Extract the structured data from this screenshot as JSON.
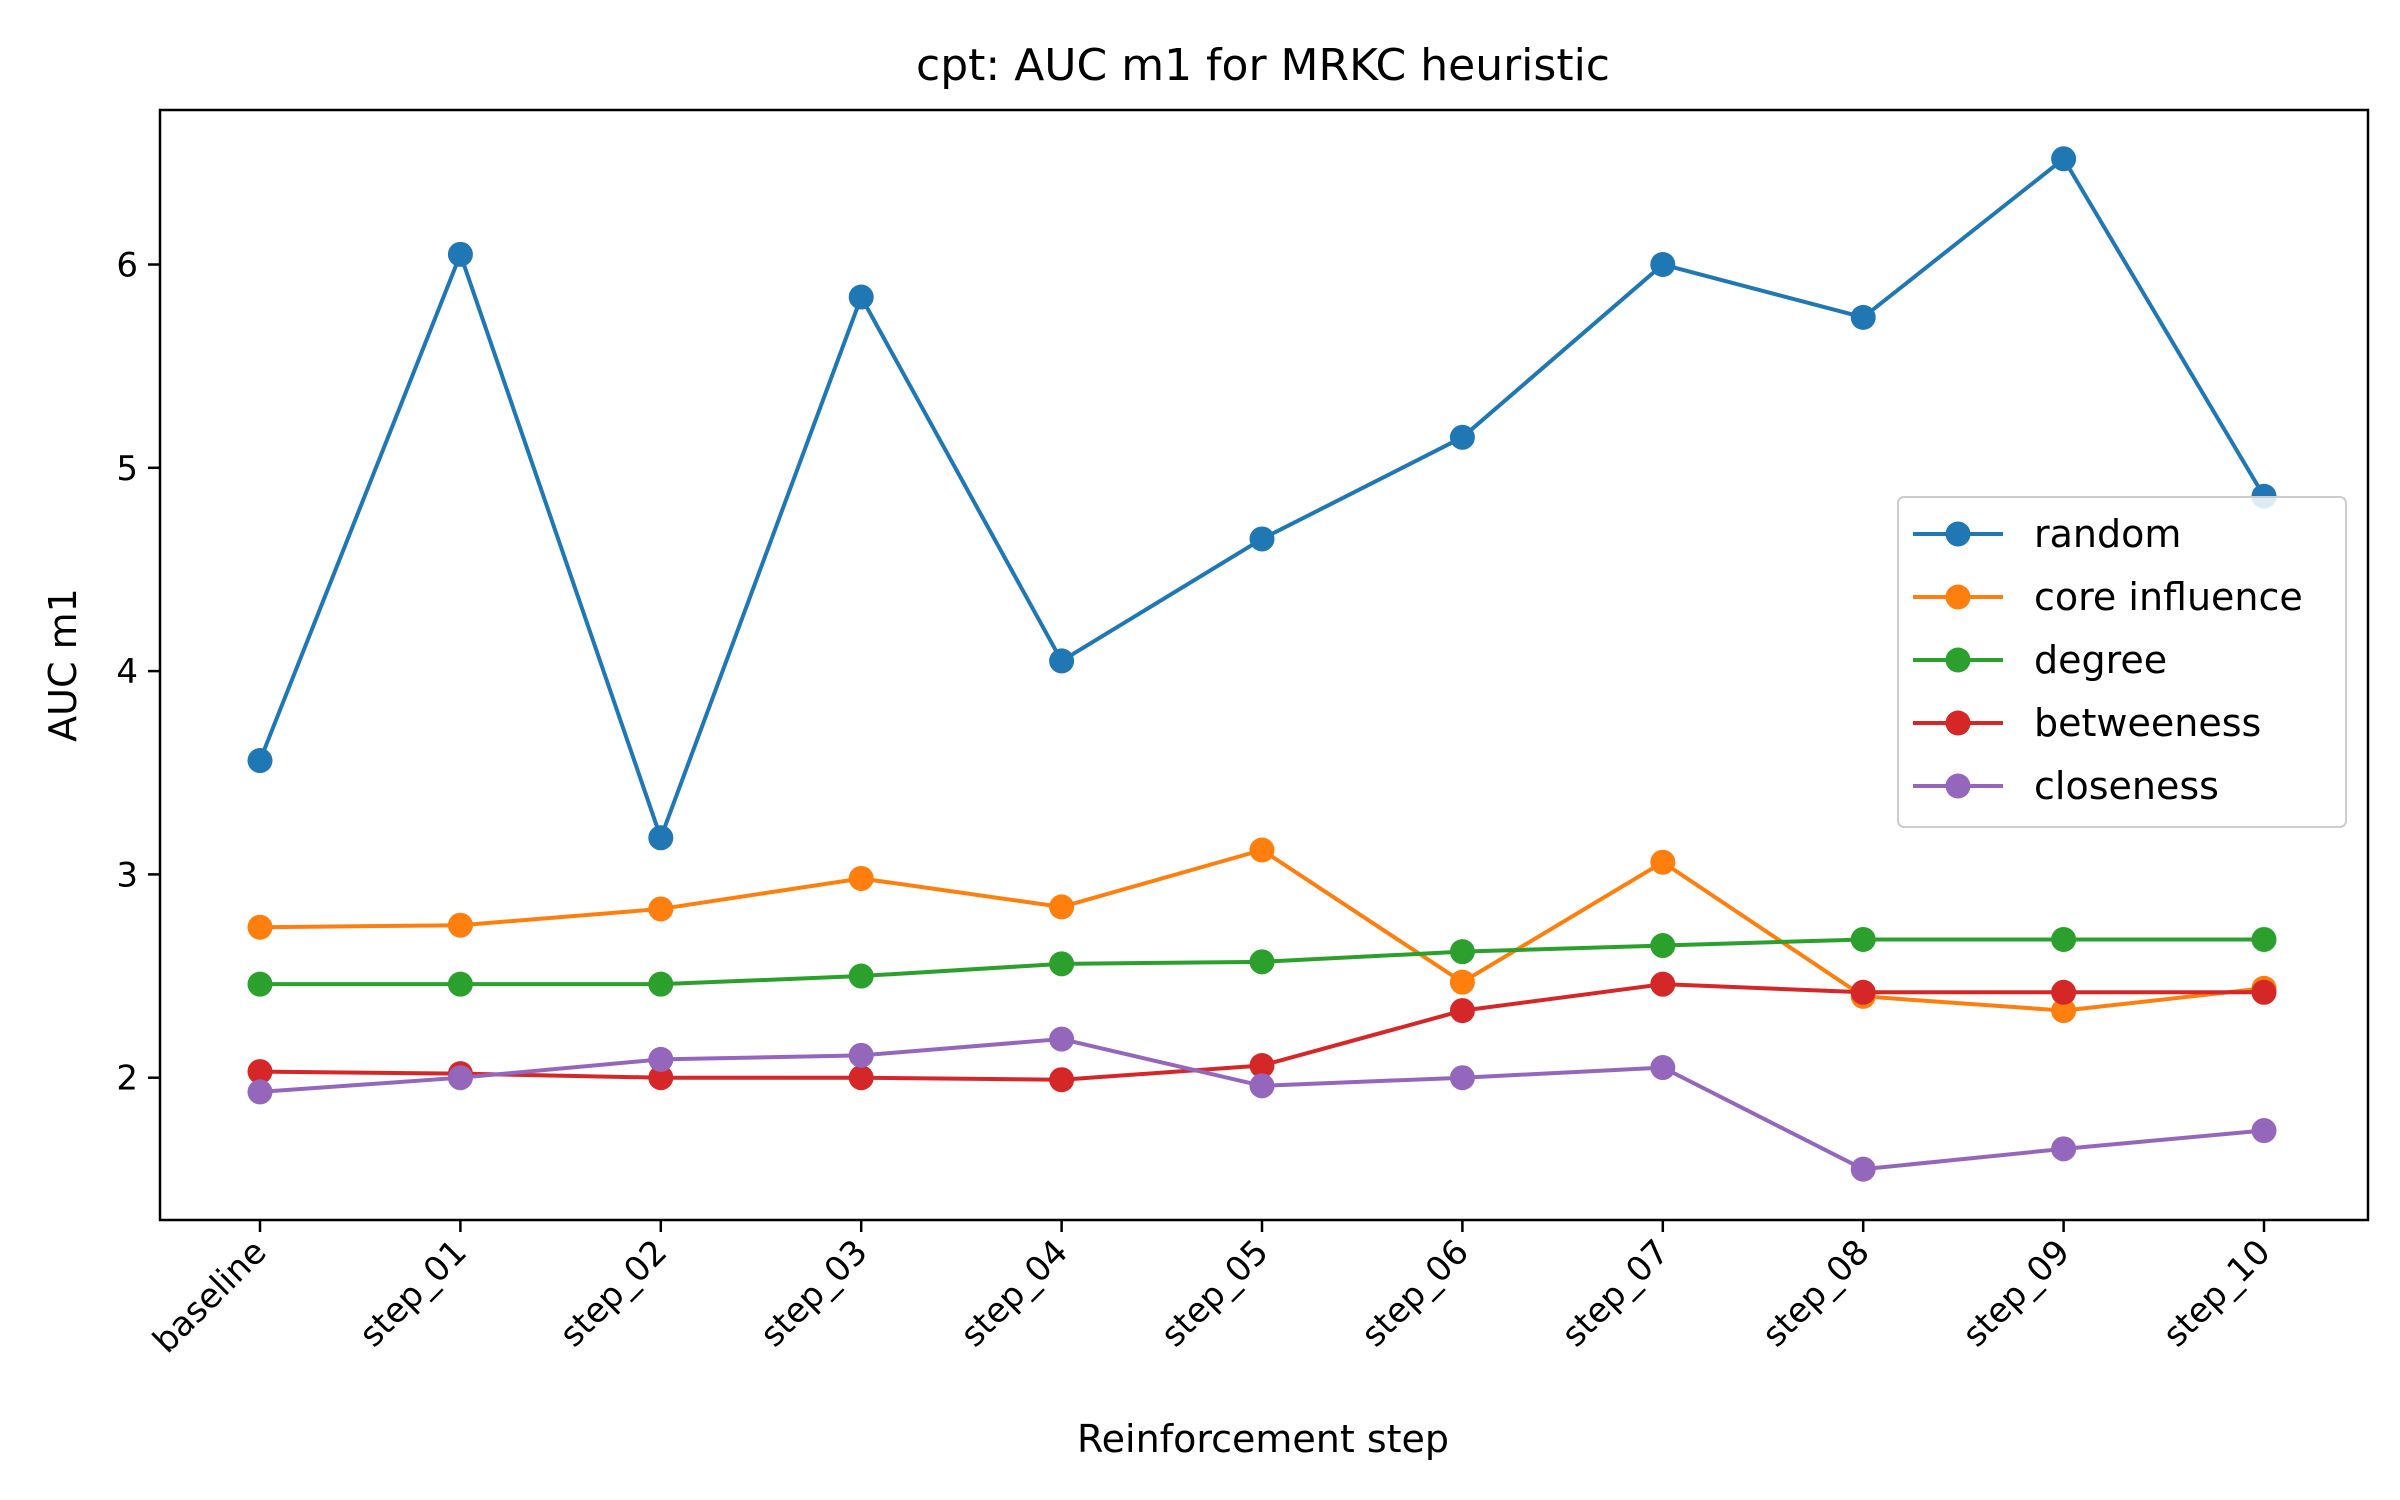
{
  "chart_data": {
    "type": "line",
    "title": "cpt: AUC m1 for MRKC heuristic",
    "xlabel": "Reinforcement step",
    "ylabel": "AUC m1",
    "categories": [
      "baseline",
      "step_01",
      "step_02",
      "step_03",
      "step_04",
      "step_05",
      "step_06",
      "step_07",
      "step_08",
      "step_09",
      "step_10"
    ],
    "ylim": [
      1.3,
      6.76
    ],
    "yticks": [
      2,
      3,
      4,
      5,
      6
    ],
    "ytick_labels": [
      "2",
      "3",
      "4",
      "5",
      "6"
    ],
    "grid": false,
    "legend_position": "center-right",
    "series": [
      {
        "name": "random",
        "color": "#1f77b4",
        "values": [
          3.56,
          6.05,
          3.18,
          5.84,
          4.05,
          4.65,
          5.15,
          6.0,
          5.74,
          6.52,
          4.86
        ]
      },
      {
        "name": "core influence",
        "color": "#ff7f0e",
        "values": [
          2.74,
          2.75,
          2.83,
          2.98,
          2.84,
          3.12,
          2.47,
          3.06,
          2.4,
          2.33,
          2.44
        ]
      },
      {
        "name": "degree",
        "color": "#2ca02c",
        "values": [
          2.46,
          2.46,
          2.46,
          2.5,
          2.56,
          2.57,
          2.62,
          2.65,
          2.68,
          2.68,
          2.68
        ]
      },
      {
        "name": "betweeness",
        "color": "#d62728",
        "values": [
          2.03,
          2.02,
          2.0,
          2.0,
          1.99,
          2.06,
          2.33,
          2.46,
          2.42,
          2.42,
          2.42
        ]
      },
      {
        "name": "closeness",
        "color": "#9467bd",
        "values": [
          1.93,
          2.0,
          2.09,
          2.11,
          2.19,
          1.96,
          2.0,
          2.05,
          1.55,
          1.65,
          1.74
        ]
      }
    ]
  }
}
